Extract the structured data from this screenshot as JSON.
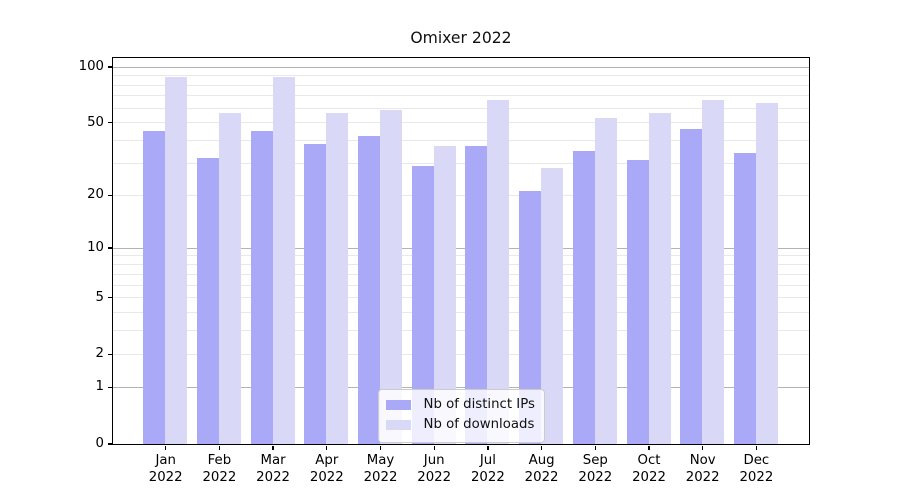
{
  "figure": {
    "title": "Omixer 2022"
  },
  "chart_data": {
    "type": "bar",
    "title": "Omixer 2022",
    "categories": [
      "Jan 2022",
      "Feb 2022",
      "Mar 2022",
      "Apr 2022",
      "May 2022",
      "Jun 2022",
      "Jul 2022",
      "Aug 2022",
      "Sep 2022",
      "Oct 2022",
      "Nov 2022",
      "Dec 2022"
    ],
    "series": [
      {
        "name": "Nb of distinct IPs",
        "color": "#a9a9f7",
        "values": [
          45,
          32,
          45,
          38,
          42,
          29,
          37,
          21,
          35,
          31,
          46,
          34
        ]
      },
      {
        "name": "Nb of downloads",
        "color": "#d9d9f7",
        "values": [
          88,
          56,
          88,
          56,
          58,
          37,
          66,
          28,
          53,
          56,
          66,
          64
        ]
      }
    ],
    "yscale": "log1p",
    "ylim": [
      0,
      112
    ],
    "y_tick_values": [
      100,
      50,
      20,
      10,
      5,
      2,
      1,
      0
    ],
    "y_decade_gridlines": [
      1,
      10,
      100
    ],
    "y_minor_gridlines": [
      2,
      3,
      4,
      5,
      6,
      7,
      8,
      9,
      20,
      30,
      40,
      50,
      60,
      70,
      80,
      90
    ],
    "grid": true,
    "legend_position": "lower center",
    "xlabel": "",
    "ylabel": ""
  },
  "colors": {
    "bar_distinct_ips": "#a9a9f7",
    "bar_downloads": "#d9d9f7",
    "decade_gridline": "#b3b3b3",
    "minor_gridline": "#e8e8e8",
    "spine": "#000000",
    "background": "#ffffff",
    "legend_border": "#cccccc"
  },
  "legend": {
    "items": [
      {
        "label": "Nb of distinct IPs"
      },
      {
        "label": "Nb of downloads"
      }
    ]
  }
}
